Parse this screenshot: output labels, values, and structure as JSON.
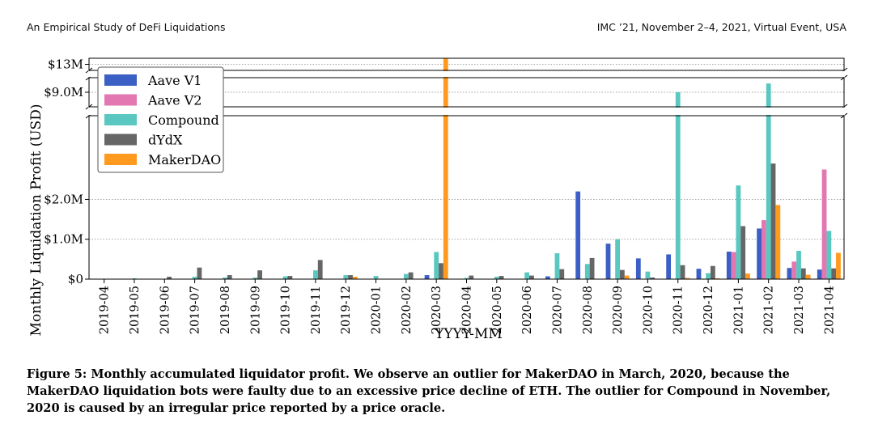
{
  "header": {
    "left": "An Empirical Study of DeFi Liquidations",
    "right": "IMC ’21, November 2–4, 2021, Virtual Event, USA"
  },
  "caption": "Figure 5: Monthly accumulated liquidator profit. We observe an outlier for MakerDAO in March, 2020, because the MakerDAO liquidation bots were faulty due to an excessive price decline of ETH. The outlier for Compound in November, 2020 is caused by an irregular price reported by a price oracle.",
  "chart_data": {
    "type": "bar",
    "title": "",
    "xlabel": "YYYY-MM",
    "ylabel": "Monthly Liquidation Profit (USD)",
    "y_scale": "broken",
    "segments": [
      {
        "range_musd": [
          0,
          4.1
        ],
        "ticks": [
          {
            "value": 0,
            "label": "$0"
          },
          {
            "value": 1,
            "label": "$1.0M"
          },
          {
            "value": 2,
            "label": "$2.0M"
          }
        ]
      },
      {
        "range_musd": [
          8.0,
          10.0
        ],
        "ticks": [
          {
            "value": 9,
            "label": "$9.0M"
          }
        ]
      },
      {
        "range_musd": [
          12.5,
          13.5
        ],
        "ticks": [
          {
            "value": 13,
            "label": "$13M"
          }
        ]
      }
    ],
    "grid": "horizontal-dotted",
    "legend_position": "top-left",
    "units": "million USD",
    "categories": [
      "2019-04",
      "2019-05",
      "2019-06",
      "2019-07",
      "2019-08",
      "2019-09",
      "2019-10",
      "2019-11",
      "2019-12",
      "2020-01",
      "2020-02",
      "2020-03",
      "2020-04",
      "2020-05",
      "2020-06",
      "2020-07",
      "2020-08",
      "2020-09",
      "2020-10",
      "2020-11",
      "2020-12",
      "2021-01",
      "2021-02",
      "2021-03",
      "2021-04"
    ],
    "series": [
      {
        "name": "Aave V1",
        "color": "#3b5fc4",
        "values": [
          0,
          0,
          0,
          0,
          0,
          0,
          0,
          0,
          0,
          0,
          0,
          0.1,
          0,
          0,
          0.01,
          0.07,
          2.2,
          0.89,
          0.52,
          0.62,
          0.26,
          0.69,
          1.27,
          0.28,
          0.24
        ]
      },
      {
        "name": "Aave V2",
        "color": "#e377b1",
        "values": [
          0,
          0,
          0,
          0,
          0,
          0,
          0,
          0,
          0,
          0,
          0,
          0,
          0,
          0,
          0,
          0,
          0,
          0,
          0,
          0,
          0,
          0.68,
          1.48,
          0.44,
          2.75
        ]
      },
      {
        "name": "Compound",
        "color": "#5ac8c0",
        "values": [
          0.01,
          0.02,
          0.01,
          0.06,
          0.04,
          0.04,
          0.07,
          0.22,
          0.1,
          0.08,
          0.13,
          0.68,
          0.03,
          0.06,
          0.17,
          0.65,
          0.38,
          1.0,
          0.19,
          9.0,
          0.15,
          2.35,
          9.6,
          0.71,
          1.21
        ]
      },
      {
        "name": "dYdX",
        "color": "#666666",
        "values": [
          0,
          0,
          0.06,
          0.29,
          0.1,
          0.22,
          0.08,
          0.48,
          0.1,
          0,
          0.17,
          0.4,
          0.09,
          0.08,
          0.09,
          0.25,
          0.53,
          0.23,
          0.04,
          0.35,
          0.33,
          1.33,
          2.9,
          0.27,
          0.27
        ]
      },
      {
        "name": "MakerDAO",
        "color": "#ff9a1f",
        "values": [
          0,
          0,
          0,
          0,
          0,
          0,
          0,
          0,
          0.06,
          0,
          0,
          13.5,
          0,
          0,
          0,
          0,
          0,
          0.09,
          0,
          0.03,
          0.02,
          0.14,
          1.86,
          0.11,
          0.66
        ]
      }
    ]
  }
}
